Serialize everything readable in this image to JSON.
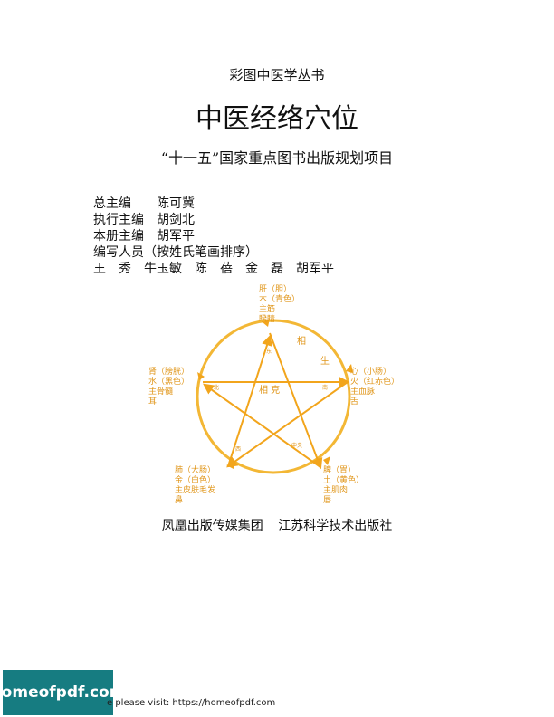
{
  "series_name": "彩图中医学丛书",
  "book_title": "中医经络穴位",
  "subtitle": "“十一五”国家重点图书出版规划项目",
  "staff": [
    "总主编　　陈可冀",
    "执行主编　胡剑北",
    "本册主编　胡军平",
    "编写人员（按姓氏笔画排序）",
    "王　秀　牛玉敏　陈　蓓　金　磊　胡军平"
  ],
  "diagram": {
    "colors": {
      "line": "#f2a51c",
      "circle": "#f3b735",
      "text": "#e0961a"
    },
    "elements": {
      "wood": [
        "肝（胆）",
        "木（青色）",
        "主筋",
        "睽睛"
      ],
      "fire": [
        "心（小肠）",
        "火（红赤色）",
        "主血脉",
        "舌"
      ],
      "earth": [
        "脾（胃）",
        "土（黄色）",
        "主肌肉",
        "唇"
      ],
      "metal": [
        "肺（大肠）",
        "金（白色）",
        "主皮肤毛发",
        "鼻"
      ],
      "water": [
        "肾（膀胱）",
        "水（黑色）",
        "主骨髓",
        "耳"
      ]
    },
    "labels": {
      "generate_1": "相",
      "generate_2": "生",
      "restrain": "相 克",
      "east": "东",
      "south": "南",
      "center": "中央",
      "west": "西",
      "north": "北"
    }
  },
  "publishers": "凤凰出版传媒集团 江苏科学技术出版社",
  "footer": {
    "badge": "homeofpdf.com",
    "text": "e please visit: https://homeofpdf.com"
  }
}
